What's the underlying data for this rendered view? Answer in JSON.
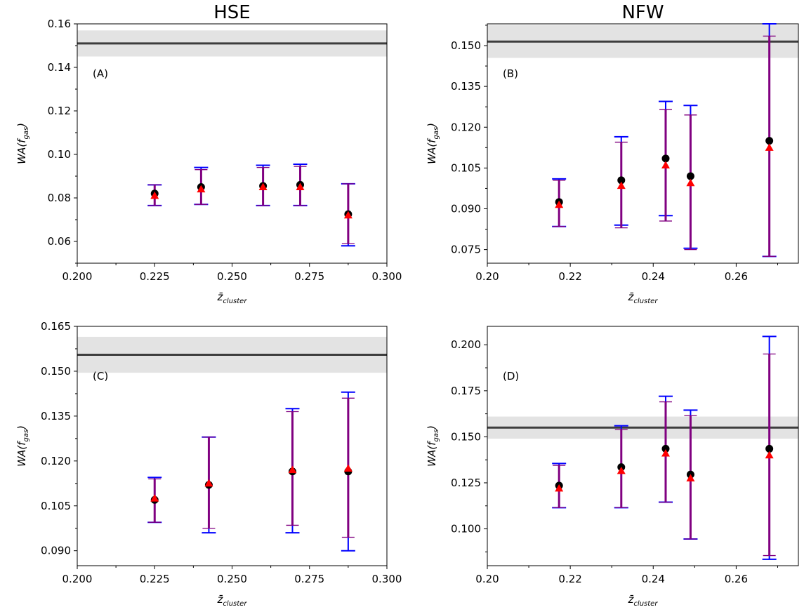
{
  "chart_data": [
    {
      "type": "scatter",
      "column_title": "HSE",
      "tag": "(A)",
      "xlabel": "z̄",
      "xlabel_sub": "cluster",
      "ylabel": "WA(f",
      "ylabel_sub": "gas",
      "xlim": [
        0.2,
        0.3
      ],
      "ylim": [
        0.05,
        0.16
      ],
      "xticks": [
        "0.200",
        "0.225",
        "0.250",
        "0.275",
        "0.300"
      ],
      "xtick_values": [
        0.2,
        0.225,
        0.25,
        0.275,
        0.3
      ],
      "yticks": [
        "0.06",
        "0.08",
        "0.10",
        "0.12",
        "0.14",
        "0.16"
      ],
      "ytick_values": [
        0.06,
        0.08,
        0.1,
        0.12,
        0.14,
        0.16
      ],
      "reference": {
        "value": 0.151,
        "band": [
          0.145,
          0.157
        ]
      },
      "points": [
        {
          "x": 0.225,
          "circle": 0.082,
          "triangle": 0.081,
          "blue_err": [
            0.0765,
            0.086
          ],
          "purple_err": [
            0.0765,
            0.086
          ]
        },
        {
          "x": 0.24,
          "circle": 0.085,
          "triangle": 0.084,
          "blue_err": [
            0.077,
            0.094
          ],
          "purple_err": [
            0.077,
            0.093
          ]
        },
        {
          "x": 0.26,
          "circle": 0.0855,
          "triangle": 0.085,
          "blue_err": [
            0.0765,
            0.095
          ],
          "purple_err": [
            0.0765,
            0.094
          ]
        },
        {
          "x": 0.272,
          "circle": 0.086,
          "triangle": 0.085,
          "blue_err": [
            0.0765,
            0.0955
          ],
          "purple_err": [
            0.0765,
            0.0945
          ]
        },
        {
          "x": 0.2875,
          "circle": 0.0725,
          "triangle": 0.072,
          "blue_err": [
            0.058,
            0.0865
          ],
          "purple_err": [
            0.059,
            0.0865
          ]
        }
      ]
    },
    {
      "type": "scatter",
      "column_title": "NFW",
      "tag": "(B)",
      "xlabel": "z̄",
      "xlabel_sub": "cluster",
      "ylabel": "WA(f",
      "ylabel_sub": "gas",
      "xlim": [
        0.2,
        0.275
      ],
      "ylim": [
        0.07,
        0.158
      ],
      "xticks": [
        "0.20",
        "0.22",
        "0.24",
        "0.26"
      ],
      "xtick_values": [
        0.2,
        0.22,
        0.24,
        0.26
      ],
      "yticks": [
        "0.075",
        "0.090",
        "0.105",
        "0.120",
        "0.135",
        "0.150"
      ],
      "ytick_values": [
        0.075,
        0.09,
        0.105,
        0.12,
        0.135,
        0.15
      ],
      "reference": {
        "value": 0.1515,
        "band": [
          0.1455,
          0.1575
        ]
      },
      "points": [
        {
          "x": 0.2173,
          "circle": 0.0925,
          "triangle": 0.0915,
          "blue_err": [
            0.0835,
            0.101
          ],
          "purple_err": [
            0.0835,
            0.1005
          ]
        },
        {
          "x": 0.2323,
          "circle": 0.1005,
          "triangle": 0.0985,
          "blue_err": [
            0.084,
            0.1165
          ],
          "purple_err": [
            0.083,
            0.1145
          ]
        },
        {
          "x": 0.243,
          "circle": 0.1085,
          "triangle": 0.106,
          "blue_err": [
            0.0875,
            0.1295
          ],
          "purple_err": [
            0.0855,
            0.1265
          ]
        },
        {
          "x": 0.249,
          "circle": 0.102,
          "triangle": 0.0995,
          "blue_err": [
            0.0755,
            0.128
          ],
          "purple_err": [
            0.075,
            0.1245
          ]
        },
        {
          "x": 0.268,
          "circle": 0.115,
          "triangle": 0.1125,
          "blue_err": [
            0.0725,
            0.158
          ],
          "purple_err": [
            0.0725,
            0.1535
          ]
        }
      ]
    },
    {
      "type": "scatter",
      "column_title": "",
      "tag": "(C)",
      "xlabel": "z̄",
      "xlabel_sub": "cluster",
      "ylabel": "WA(f",
      "ylabel_sub": "gas",
      "xlim": [
        0.2,
        0.3
      ],
      "ylim": [
        0.085,
        0.165
      ],
      "xticks": [
        "0.200",
        "0.225",
        "0.250",
        "0.275",
        "0.300"
      ],
      "xtick_values": [
        0.2,
        0.225,
        0.25,
        0.275,
        0.3
      ],
      "yticks": [
        "0.090",
        "0.105",
        "0.120",
        "0.135",
        "0.150",
        "0.165"
      ],
      "ytick_values": [
        0.09,
        0.105,
        0.12,
        0.135,
        0.15,
        0.165
      ],
      "reference": {
        "value": 0.1555,
        "band": [
          0.1495,
          0.1615
        ]
      },
      "points": [
        {
          "x": 0.225,
          "circle": 0.107,
          "triangle": 0.1075,
          "blue_err": [
            0.0995,
            0.1145
          ],
          "purple_err": [
            0.0995,
            0.114
          ]
        },
        {
          "x": 0.2425,
          "circle": 0.112,
          "triangle": 0.1125,
          "blue_err": [
            0.096,
            0.128
          ],
          "purple_err": [
            0.0975,
            0.128
          ]
        },
        {
          "x": 0.2695,
          "circle": 0.1165,
          "triangle": 0.117,
          "blue_err": [
            0.096,
            0.1375
          ],
          "purple_err": [
            0.0985,
            0.1365
          ]
        },
        {
          "x": 0.2875,
          "circle": 0.1165,
          "triangle": 0.1175,
          "blue_err": [
            0.09,
            0.143
          ],
          "purple_err": [
            0.0945,
            0.141
          ]
        }
      ]
    },
    {
      "type": "scatter",
      "column_title": "",
      "tag": "(D)",
      "xlabel": "z̄",
      "xlabel_sub": "cluster",
      "ylabel": "WA(f",
      "ylabel_sub": "gas",
      "xlim": [
        0.2,
        0.275
      ],
      "ylim": [
        0.08,
        0.21
      ],
      "xticks": [
        "0.20",
        "0.22",
        "0.24",
        "0.26"
      ],
      "xtick_values": [
        0.2,
        0.22,
        0.24,
        0.26
      ],
      "yticks": [
        "0.100",
        "0.125",
        "0.150",
        "0.175",
        "0.200"
      ],
      "ytick_values": [
        0.1,
        0.125,
        0.15,
        0.175,
        0.2
      ],
      "reference": {
        "value": 0.155,
        "band": [
          0.149,
          0.161
        ]
      },
      "points": [
        {
          "x": 0.2173,
          "circle": 0.1235,
          "triangle": 0.122,
          "blue_err": [
            0.1115,
            0.1355
          ],
          "purple_err": [
            0.1115,
            0.1345
          ]
        },
        {
          "x": 0.2323,
          "circle": 0.1335,
          "triangle": 0.1315,
          "blue_err": [
            0.1115,
            0.156
          ],
          "purple_err": [
            0.1115,
            0.154
          ]
        },
        {
          "x": 0.243,
          "circle": 0.1435,
          "triangle": 0.141,
          "blue_err": [
            0.1145,
            0.172
          ],
          "purple_err": [
            0.1145,
            0.169
          ]
        },
        {
          "x": 0.249,
          "circle": 0.1295,
          "triangle": 0.1275,
          "blue_err": [
            0.0945,
            0.1645
          ],
          "purple_err": [
            0.0945,
            0.1615
          ]
        },
        {
          "x": 0.268,
          "circle": 0.1435,
          "triangle": 0.14,
          "blue_err": [
            0.0835,
            0.2045
          ],
          "purple_err": [
            0.0855,
            0.195
          ]
        }
      ]
    }
  ],
  "colors": {
    "circle": "#000000",
    "triangle": "#ff0000",
    "blue_err": "#0000ff",
    "purple_err": "#800080",
    "reference_line": "#3d3d3d",
    "band": "#e3e3e3"
  }
}
